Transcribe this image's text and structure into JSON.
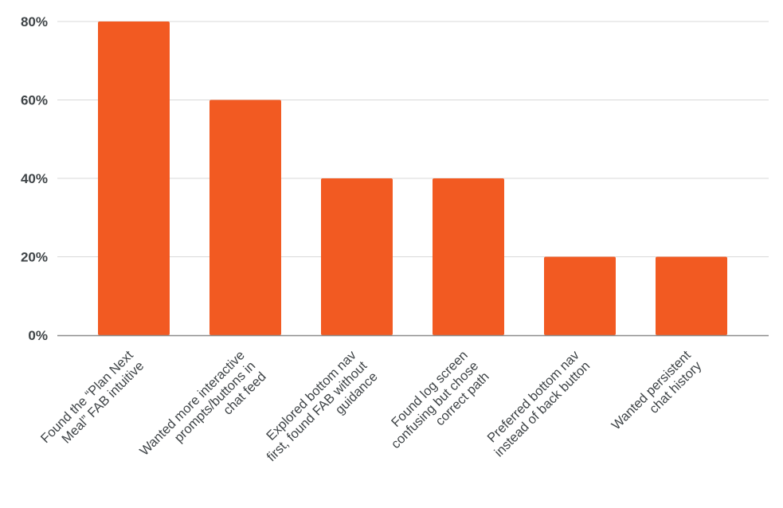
{
  "chart_data": {
    "type": "bar",
    "title": "",
    "xlabel": "",
    "ylabel": "",
    "ylim": [
      0,
      0.8
    ],
    "yticks": [
      "0%",
      "20%",
      "40%",
      "60%",
      "80%"
    ],
    "ytick_values": [
      0,
      0.2,
      0.4,
      0.6,
      0.8
    ],
    "grid": true,
    "legend": "none",
    "bar_color": "#f25a22",
    "grid_color": "#d9d9d9",
    "axis_color": "#8c8c8c",
    "categories": [
      [
        "Found the “Plan Next",
        "Meal” FAB intuitive"
      ],
      [
        "Wanted more interactive",
        "prompts/buttons in",
        "chat feed"
      ],
      [
        "Explored bottom nav",
        "first, found FAB without",
        "guidance"
      ],
      [
        "Found log screen",
        "confusing but chose",
        "correct path"
      ],
      [
        "Preferred bottom nav",
        "instead of back button"
      ],
      [
        "Wanted persistent",
        "chat history"
      ]
    ],
    "values": [
      0.8,
      0.6,
      0.4,
      0.4,
      0.2,
      0.2
    ]
  }
}
